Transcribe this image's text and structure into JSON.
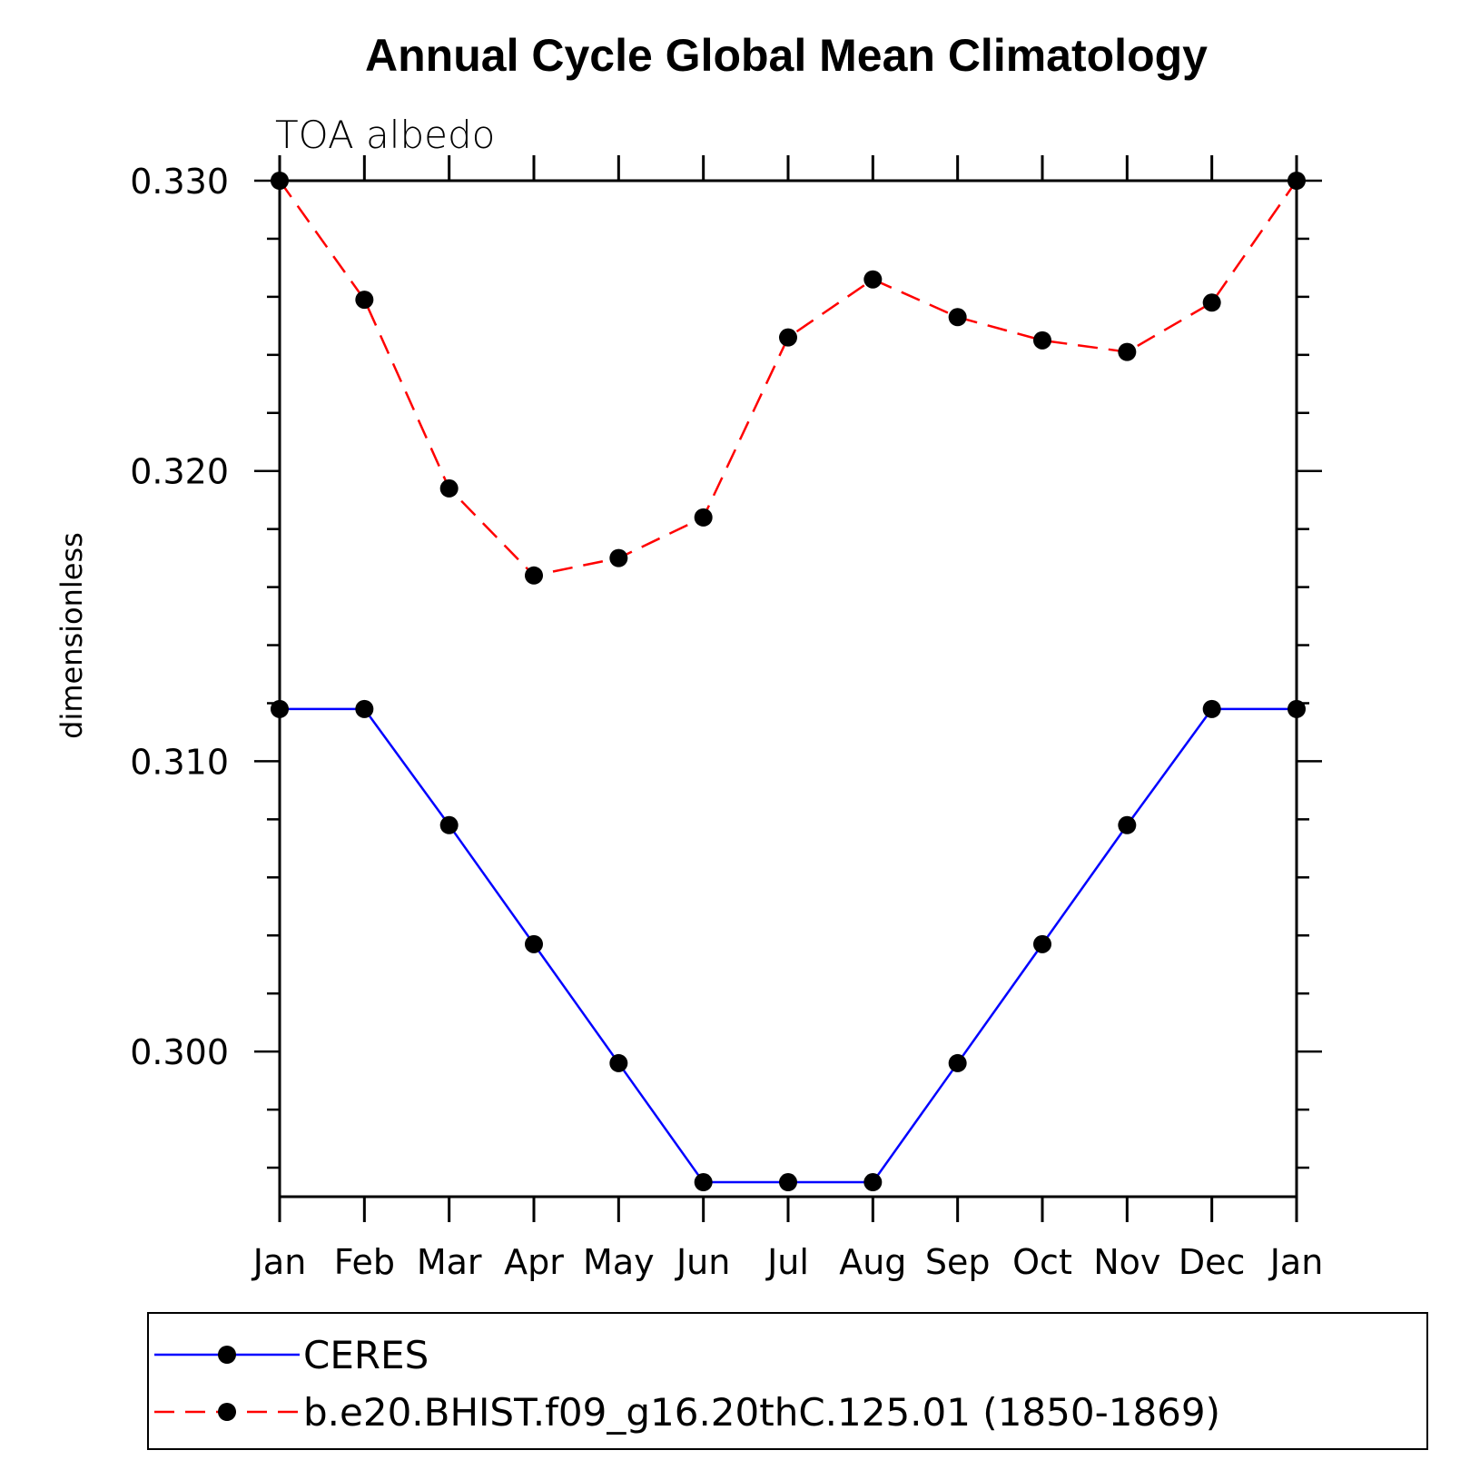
{
  "chart_data": {
    "type": "line",
    "title": "Annual Cycle Global Mean Climatology",
    "subtitle": "TOA albedo",
    "ylabel": "dimensionless",
    "xlabel": "",
    "categories": [
      "Jan",
      "Feb",
      "Mar",
      "Apr",
      "May",
      "Jun",
      "Jul",
      "Aug",
      "Sep",
      "Oct",
      "Nov",
      "Dec",
      "Jan"
    ],
    "ylim": [
      0.295,
      0.33
    ],
    "yticks": [
      0.3,
      0.31,
      0.32,
      0.33
    ],
    "ytick_labels": [
      "0.300",
      "0.310",
      "0.320",
      "0.330"
    ],
    "grid": false,
    "legend_position": "bottom",
    "series": [
      {
        "name": "CERES",
        "color": "#0000ff",
        "dash": "solid",
        "values": [
          0.3118,
          0.3118,
          0.3078,
          0.3037,
          0.2996,
          0.2955,
          0.2955,
          0.2955,
          0.2996,
          0.3037,
          0.3078,
          0.3118,
          0.3118
        ]
      },
      {
        "name": "b.e20.BHIST.f09_g16.20thC.125.01 (1850-1869)",
        "color": "#ff0000",
        "dash": "dashed",
        "values": [
          0.33,
          0.3259,
          0.3194,
          0.3164,
          0.317,
          0.3184,
          0.3246,
          0.3266,
          0.3253,
          0.3245,
          0.3241,
          0.3258,
          0.33
        ]
      }
    ],
    "marker_color": "#000000"
  }
}
